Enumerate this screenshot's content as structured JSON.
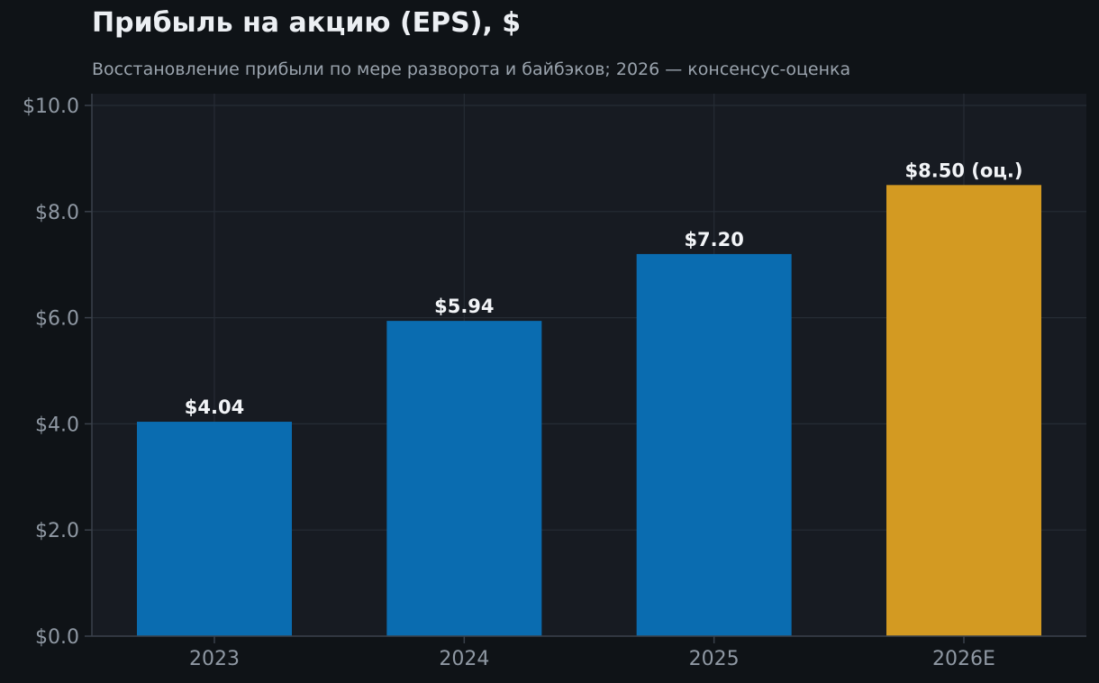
{
  "chart_data": {
    "type": "bar",
    "title": "Прибыль на акцию (EPS), $",
    "subtitle": "Восстановление прибыли по мере разворота и байбэков; 2026 — консенсус-оценка",
    "categories": [
      "2023",
      "2024",
      "2025",
      "2026E"
    ],
    "values": [
      4.04,
      5.94,
      7.2,
      8.5
    ],
    "data_labels": [
      "$4.04",
      "$5.94",
      "$7.20",
      "$8.50 (оц.)"
    ],
    "bar_colors": [
      "#0a6cb0",
      "#0a6cb0",
      "#0a6cb0",
      "#d39a22"
    ],
    "ylim": [
      0,
      10
    ],
    "yticks": [
      0,
      2,
      4,
      6,
      8,
      10
    ],
    "ytick_labels": [
      "$0.0",
      "$2.0",
      "$4.0",
      "$6.0",
      "$8.0",
      "$10.0"
    ],
    "xlabel": "",
    "ylabel": "",
    "grid": true,
    "colors": {
      "background": "#0f1317",
      "plot_background": "#171b22",
      "grid": "#262c35",
      "axis": "#3a414b"
    }
  }
}
